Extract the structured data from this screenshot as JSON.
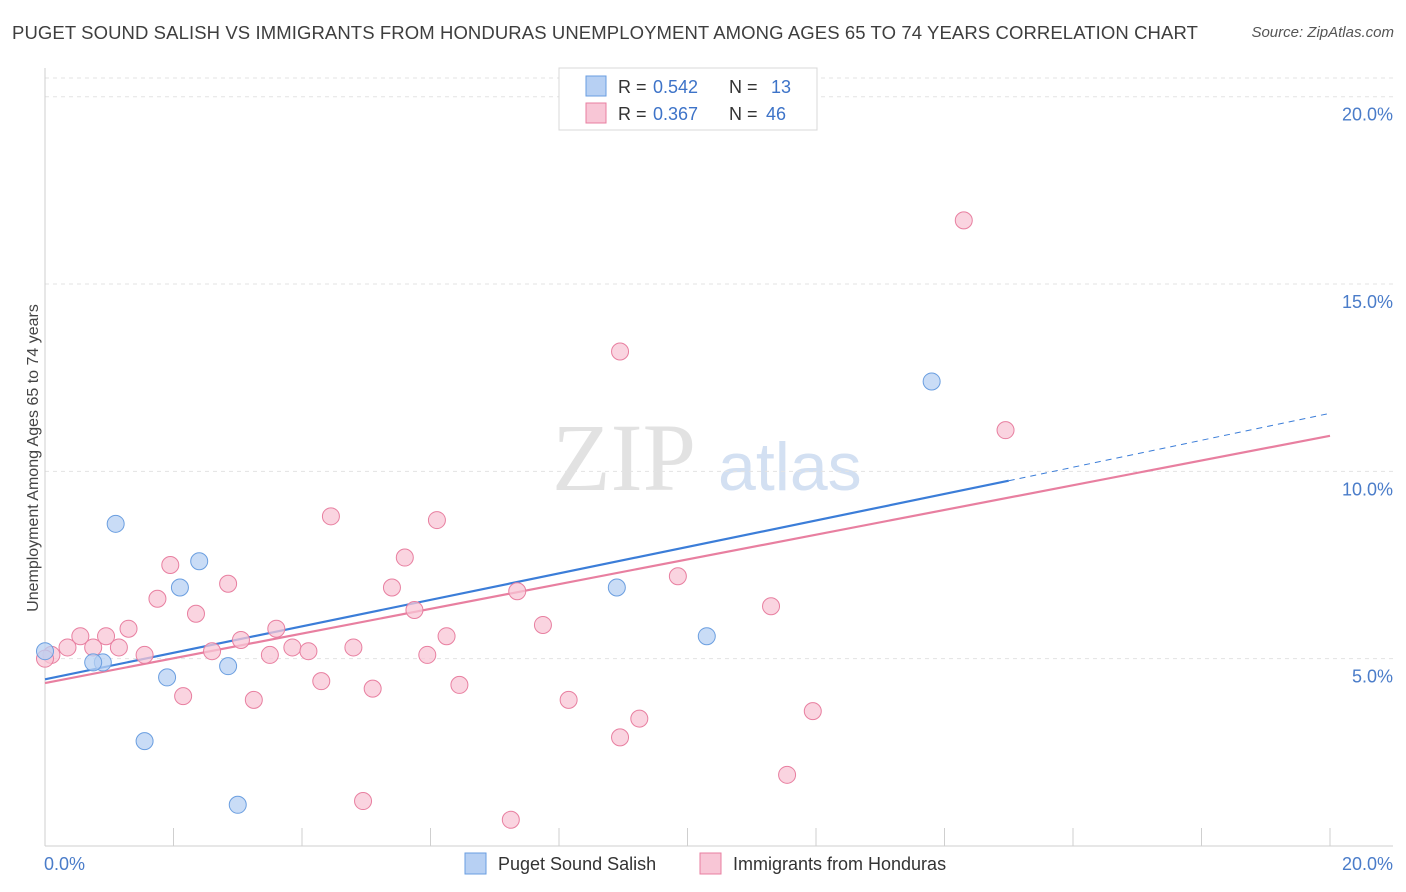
{
  "title": "PUGET SOUND SALISH VS IMMIGRANTS FROM HONDURAS UNEMPLOYMENT AMONG AGES 65 TO 74 YEARS CORRELATION CHART",
  "source": "Source: ZipAtlas.com",
  "watermark": {
    "zip": "ZIP",
    "atlas": "atlas"
  },
  "chart_data": {
    "type": "scatter",
    "title": "PUGET SOUND SALISH VS IMMIGRANTS FROM HONDURAS UNEMPLOYMENT AMONG AGES 65 TO 74 YEARS CORRELATION CHART",
    "xlabel": "",
    "ylabel": "Unemployment Among Ages 65 to 74 years",
    "xlim": [
      0,
      20
    ],
    "ylim": [
      0,
      20.5
    ],
    "x_tick_labels": [
      "0.0%",
      "20.0%"
    ],
    "y_ticks": [
      5,
      10,
      15,
      20
    ],
    "y_tick_labels": [
      "5.0%",
      "10.0%",
      "15.0%",
      "20.0%"
    ],
    "grid": true,
    "legend_position": "top-center",
    "series": [
      {
        "name": "Puget Sound Salish",
        "color": "#6a9ee0",
        "fill": "#b7d0f3",
        "r_label": "R =",
        "r_value": "0.542",
        "n_label": "N =",
        "n_value": "13",
        "points": [
          [
            0.0,
            5.2
          ],
          [
            0.9,
            4.9
          ],
          [
            0.75,
            4.9
          ],
          [
            1.1,
            8.6
          ],
          [
            1.55,
            2.8
          ],
          [
            1.9,
            4.5
          ],
          [
            2.1,
            6.9
          ],
          [
            2.4,
            7.6
          ],
          [
            2.85,
            4.8
          ],
          [
            3.0,
            1.1
          ],
          [
            8.9,
            6.9
          ],
          [
            10.3,
            5.6
          ],
          [
            13.8,
            12.4
          ]
        ],
        "trend": {
          "x": [
            0,
            15.0
          ],
          "y": [
            4.45,
            9.75
          ],
          "dashed_x": [
            15.0,
            20.0
          ],
          "dashed_y": [
            9.75,
            11.55
          ]
        }
      },
      {
        "name": "Immigrants from Honduras",
        "color": "#e87fa0",
        "fill": "#f8c6d6",
        "r_label": "R =",
        "r_value": "0.367",
        "n_label": "N =",
        "n_value": "46",
        "points": [
          [
            0.1,
            5.1
          ],
          [
            0.35,
            5.3
          ],
          [
            0.55,
            5.6
          ],
          [
            0.75,
            5.3
          ],
          [
            0.95,
            5.6
          ],
          [
            1.15,
            5.3
          ],
          [
            1.3,
            5.8
          ],
          [
            1.55,
            5.1
          ],
          [
            1.75,
            6.6
          ],
          [
            1.95,
            7.5
          ],
          [
            2.15,
            4.0
          ],
          [
            2.35,
            6.2
          ],
          [
            2.6,
            5.2
          ],
          [
            2.85,
            7.0
          ],
          [
            3.05,
            5.5
          ],
          [
            3.25,
            3.9
          ],
          [
            3.5,
            5.1
          ],
          [
            3.6,
            5.8
          ],
          [
            3.85,
            5.3
          ],
          [
            4.1,
            5.2
          ],
          [
            4.3,
            4.4
          ],
          [
            4.45,
            8.8
          ],
          [
            4.8,
            5.3
          ],
          [
            4.95,
            1.2
          ],
          [
            5.1,
            4.2
          ],
          [
            5.4,
            6.9
          ],
          [
            5.6,
            7.7
          ],
          [
            5.75,
            6.3
          ],
          [
            5.95,
            5.1
          ],
          [
            6.1,
            8.7
          ],
          [
            6.25,
            5.6
          ],
          [
            6.45,
            4.3
          ],
          [
            7.25,
            0.7
          ],
          [
            7.35,
            6.8
          ],
          [
            7.75,
            5.9
          ],
          [
            8.15,
            3.9
          ],
          [
            8.95,
            2.9
          ],
          [
            8.95,
            13.2
          ],
          [
            9.25,
            3.4
          ],
          [
            9.85,
            7.2
          ],
          [
            11.3,
            6.4
          ],
          [
            11.55,
            1.9
          ],
          [
            11.95,
            3.6
          ],
          [
            14.3,
            16.7
          ],
          [
            14.95,
            11.1
          ],
          [
            0.0,
            5.0
          ]
        ],
        "trend": {
          "x": [
            0,
            20.0
          ],
          "y": [
            4.35,
            10.95
          ]
        }
      }
    ]
  }
}
